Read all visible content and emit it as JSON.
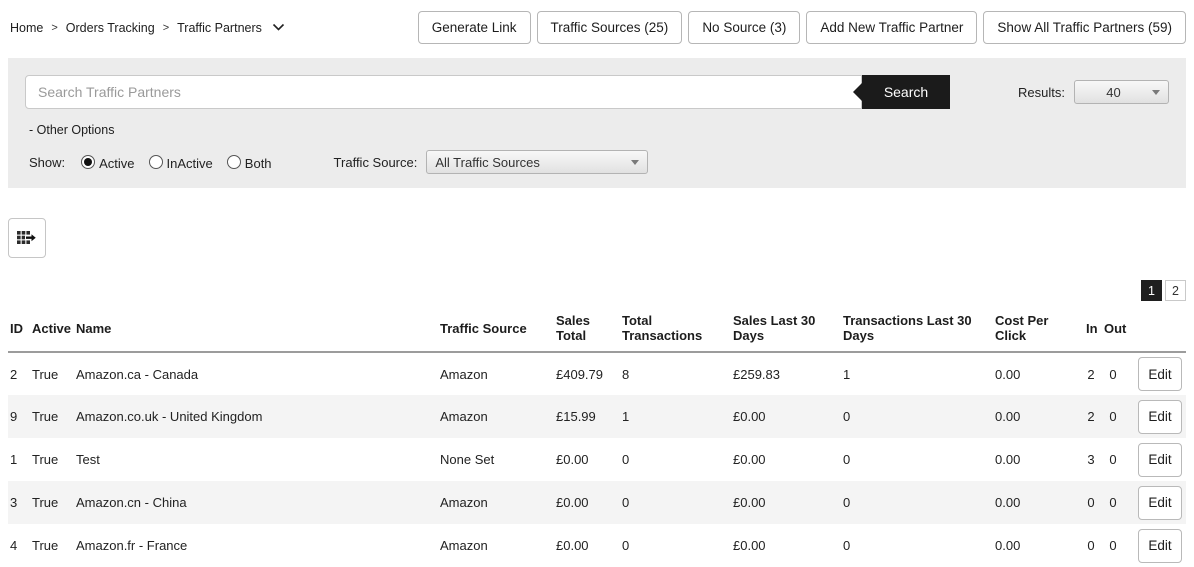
{
  "breadcrumb": {
    "separator": ">",
    "items": [
      "Home",
      "Orders Tracking",
      "Traffic Partners"
    ]
  },
  "toolbar": {
    "buttons": [
      "Generate Link",
      "Traffic Sources (25)",
      "No Source (3)",
      "Add New Traffic Partner",
      "Show All Traffic Partners (59)"
    ]
  },
  "search": {
    "placeholder": "Search Traffic Partners",
    "button_label": "Search",
    "results_label": "Results:",
    "results_value": "40"
  },
  "filters": {
    "other_options_label": "- Other Options",
    "show_label": "Show:",
    "radios": [
      {
        "label": "Active",
        "selected": true
      },
      {
        "label": "InActive",
        "selected": false
      },
      {
        "label": "Both",
        "selected": false
      }
    ],
    "traffic_source_label": "Traffic Source:",
    "traffic_source_value": "All Traffic Sources"
  },
  "icons": {
    "breadcrumb_chevron": "chevron-down-icon",
    "dropdown_arrow": "dropdown-arrow-icon",
    "export": "table-export-icon"
  },
  "pagination": {
    "pages": [
      "1",
      "2"
    ],
    "active": "1"
  },
  "table": {
    "columns": [
      "ID",
      "Active",
      "Name",
      "Traffic Source",
      "Sales Total",
      "Total Transactions",
      "Sales Last 30 Days",
      "Transactions Last 30 Days",
      "Cost Per Click",
      "In",
      "Out"
    ],
    "edit_label": "Edit",
    "rows": [
      [
        "2",
        "True",
        "Amazon.ca - Canada",
        "Amazon",
        "£409.79",
        "8",
        "£259.83",
        "1",
        "0.00",
        "2",
        "0"
      ],
      [
        "9",
        "True",
        "Amazon.co.uk - United Kingdom",
        "Amazon",
        "£15.99",
        "1",
        "£0.00",
        "0",
        "0.00",
        "2",
        "0"
      ],
      [
        "1",
        "True",
        "Test",
        "None Set",
        "£0.00",
        "0",
        "£0.00",
        "0",
        "0.00",
        "3",
        "0"
      ],
      [
        "3",
        "True",
        "Amazon.cn - China",
        "Amazon",
        "£0.00",
        "0",
        "£0.00",
        "0",
        "0.00",
        "0",
        "0"
      ],
      [
        "4",
        "True",
        "Amazon.fr - France",
        "Amazon",
        "£0.00",
        "0",
        "£0.00",
        "0",
        "0.00",
        "0",
        "0"
      ]
    ]
  },
  "colors": {
    "accent_dark": "#1b1b1b",
    "panel_bg": "#ececec",
    "row_stripe": "#f4f4f4",
    "border_gray": "#b6b6b6"
  }
}
